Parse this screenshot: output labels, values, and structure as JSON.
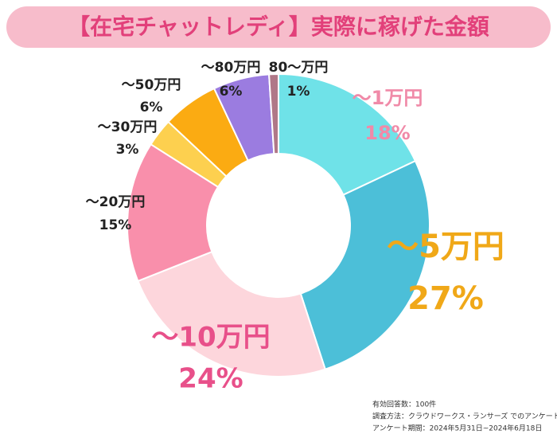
{
  "chart_data": {
    "type": "donut",
    "title": "【在宅チャットレディ】実際に稼げた金額",
    "categories": [
      "～1万円",
      "～5万円",
      "～10万円",
      "～20万円",
      "～30万円",
      "～50万円",
      "～80万円",
      "80～万円"
    ],
    "values": [
      18,
      27,
      24,
      15,
      3,
      6,
      6,
      1
    ],
    "value_labels": [
      "18%",
      "27%",
      "24%",
      "15%",
      "3%",
      "6%",
      "6%",
      "1%"
    ],
    "colors": [
      "#6fe2e8",
      "#4cbfd8",
      "#fdd6dc",
      "#f98fab",
      "#fdd04f",
      "#fbab12",
      "#9b7ce0",
      "#b07888"
    ],
    "label_colors": [
      "#f08aa8",
      "#f0a818",
      "#e8508a",
      "#222222",
      "#222222",
      "#222222",
      "#222222",
      "#222222"
    ],
    "notes": [
      "有効回答数：100件",
      "調査方法：クラウドワークス・ランサーズ でのアンケート",
      "アンケート期間：2024年5月31日~2024年6月18日"
    ]
  }
}
